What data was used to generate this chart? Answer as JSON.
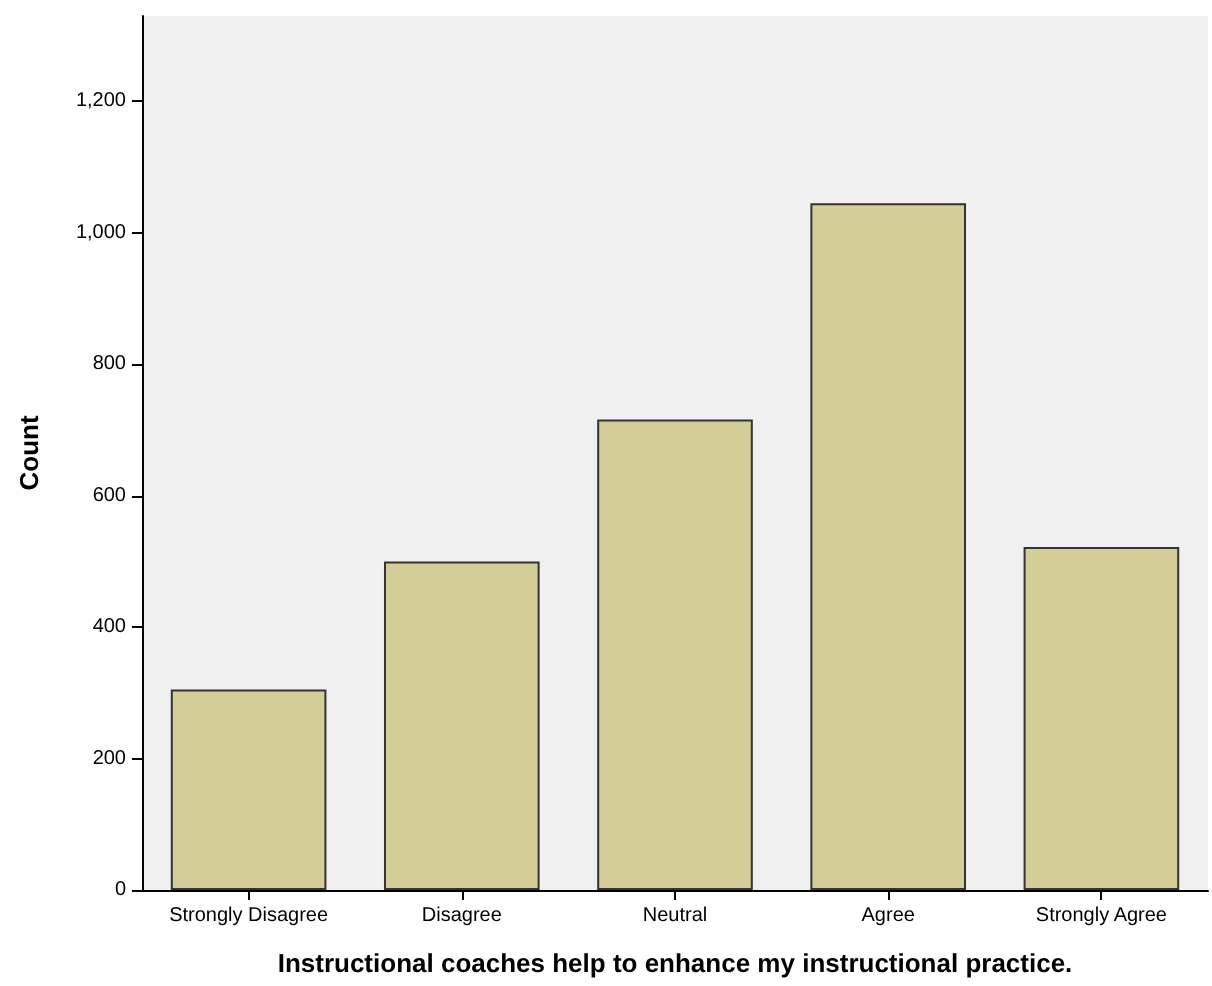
{
  "chart_data": {
    "type": "bar",
    "xlabel": "Instructional coaches help to enhance my instructional practice.",
    "ylabel": "Count",
    "categories": [
      "Strongly Disagree",
      "Disagree",
      "Neutral",
      "Agree",
      "Strongly Agree"
    ],
    "values": [
      305,
      500,
      716,
      1045,
      522
    ],
    "color": "#d3ce97",
    "ylim": [
      0,
      1330
    ],
    "yticks": [
      0,
      {
        "value": 200,
        "label": "200"
      },
      {
        "value": 400,
        "label": "400"
      },
      {
        "value": 600,
        "label": "600"
      },
      {
        "value": 800,
        "label": "800"
      },
      {
        "value": 1000,
        "label": "1,000"
      },
      {
        "value": 1200,
        "label": "1,200"
      }
    ],
    "grid": false
  }
}
